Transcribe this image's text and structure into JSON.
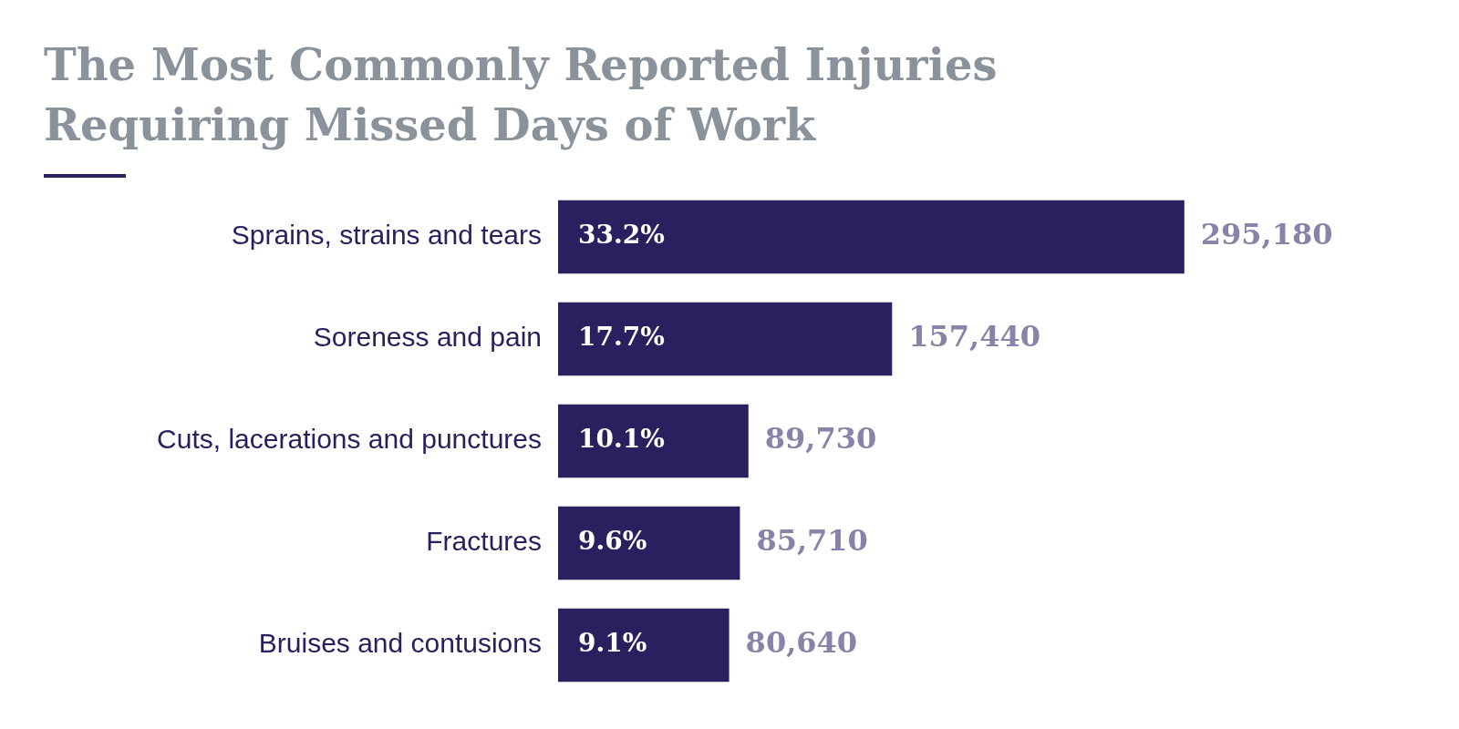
{
  "chart_data": {
    "type": "bar",
    "orientation": "horizontal",
    "title": "The Most Commonly Reported Injuries\nRequiring Missed Days of Work",
    "categories": [
      "Sprains, strains and tears",
      "Soreness and pain",
      "Cuts, lacerations and punctures",
      "Fractures",
      "Bruises and contusions"
    ],
    "values": [
      295180,
      157440,
      89730,
      85710,
      80640
    ],
    "value_labels": [
      "295,180",
      "157,440",
      "89,730",
      "85,710",
      "80,640"
    ],
    "color": "#29215f",
    "tick_labels": "y",
    "grid": false,
    "legend": false,
    "annotations": [
      {
        "text": "33.2%",
        "y": "Sprains, strains and tears"
      },
      {
        "text": "17.7%",
        "y": "Soreness and pain"
      },
      {
        "text": "10.1%",
        "y": "Cuts, lacerations and punctures"
      },
      {
        "text": "9.6%",
        "y": "Fractures"
      },
      {
        "text": "9.1%",
        "y": "Bruises and contusions"
      }
    ]
  }
}
